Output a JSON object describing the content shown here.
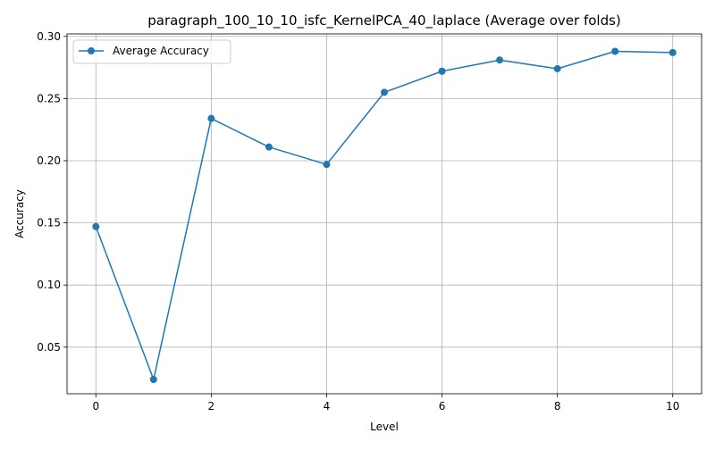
{
  "chart_data": {
    "type": "line",
    "title": "paragraph_100_10_10_isfc_KernelPCA_40_laplace (Average over folds)",
    "xlabel": "Level",
    "ylabel": "Accuracy",
    "xlim": [
      -0.5,
      10.5
    ],
    "ylim": [
      0.0125,
      0.302
    ],
    "x_ticks": [
      0,
      2,
      4,
      6,
      8,
      10
    ],
    "y_ticks": [
      0.05,
      0.1,
      0.15,
      0.2,
      0.25,
      0.3
    ],
    "x_tick_labels": [
      "0",
      "2",
      "4",
      "6",
      "8",
      "10"
    ],
    "y_tick_labels": [
      "0.05",
      "0.10",
      "0.15",
      "0.20",
      "0.25",
      "0.30"
    ],
    "grid": true,
    "legend_position": "top-left",
    "series": [
      {
        "name": "Average Accuracy",
        "color": "#1f77b4",
        "marker": "circle",
        "x": [
          0,
          1,
          2,
          3,
          4,
          5,
          6,
          7,
          8,
          9,
          10
        ],
        "values": [
          0.147,
          0.024,
          0.234,
          0.211,
          0.197,
          0.255,
          0.272,
          0.281,
          0.274,
          0.288,
          0.287
        ]
      }
    ]
  }
}
